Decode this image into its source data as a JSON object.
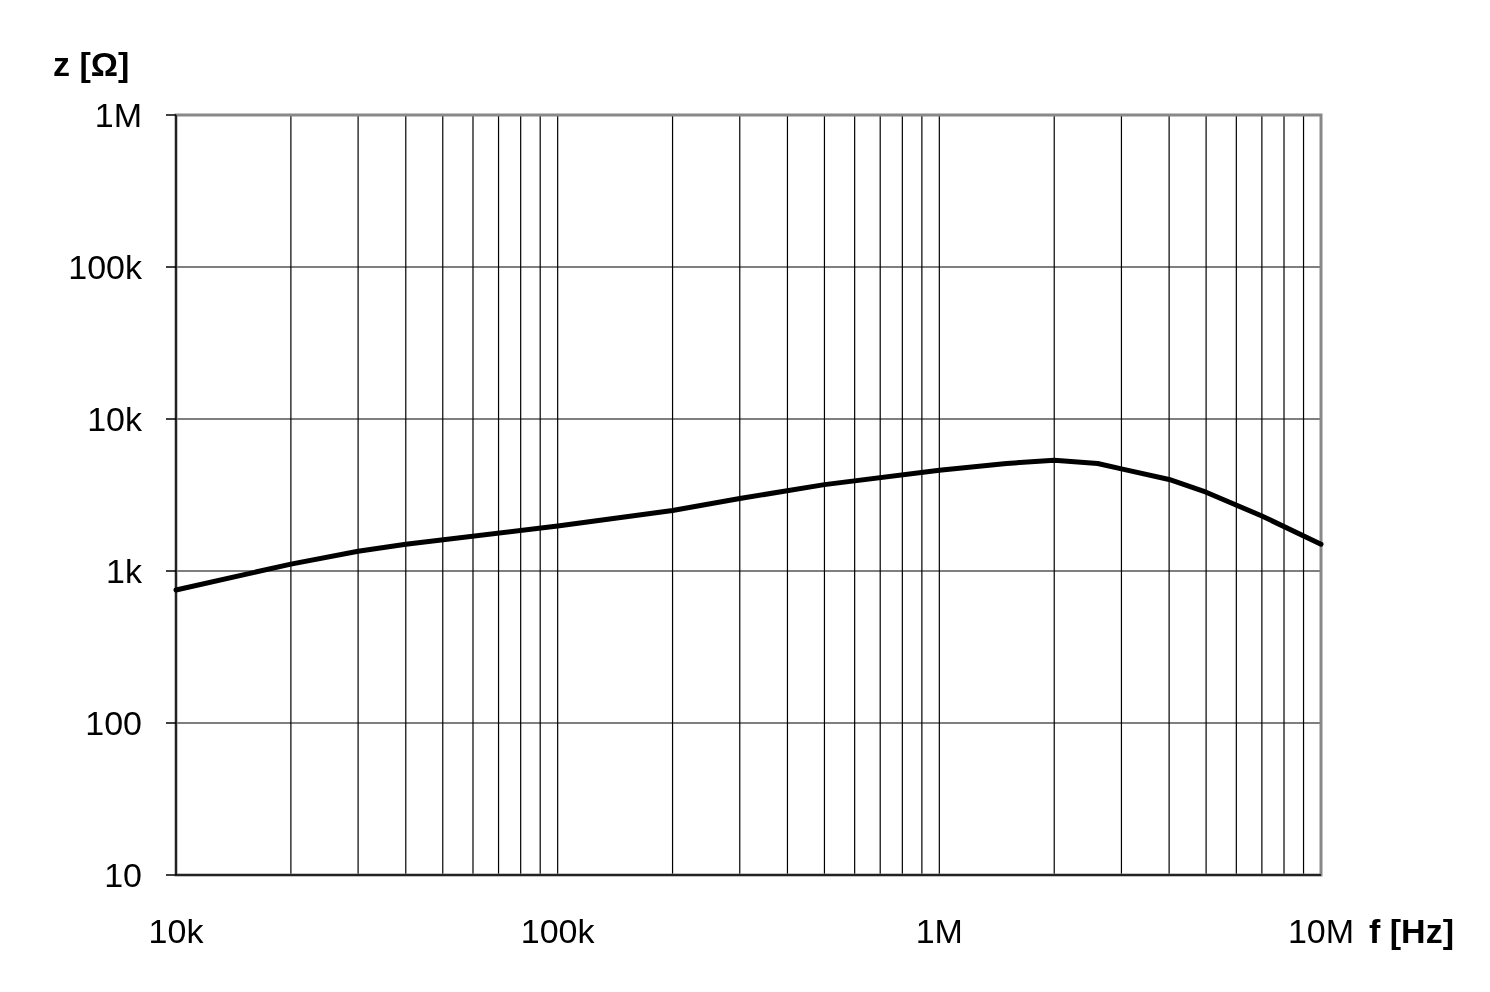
{
  "chart_data": {
    "type": "line",
    "xlabel": "f [Hz]",
    "ylabel": "z [Ω]",
    "log": "xy",
    "grid": true,
    "marker": "none",
    "line_style": "solid",
    "xlim": [
      10000,
      10000000
    ],
    "ylim": [
      10,
      1000000
    ],
    "xticks": [
      {
        "value": 10000,
        "label": "10k"
      },
      {
        "value": 20000,
        "label": null
      },
      {
        "value": 30000,
        "label": null
      },
      {
        "value": 40000,
        "label": null
      },
      {
        "value": 50000,
        "label": null
      },
      {
        "value": 60000,
        "label": null
      },
      {
        "value": 70000,
        "label": null
      },
      {
        "value": 80000,
        "label": null
      },
      {
        "value": 90000,
        "label": null
      },
      {
        "value": 100000,
        "label": "100k"
      },
      {
        "value": 200000,
        "label": null
      },
      {
        "value": 300000,
        "label": null
      },
      {
        "value": 400000,
        "label": null
      },
      {
        "value": 500000,
        "label": null
      },
      {
        "value": 600000,
        "label": null
      },
      {
        "value": 700000,
        "label": null
      },
      {
        "value": 800000,
        "label": null
      },
      {
        "value": 900000,
        "label": null
      },
      {
        "value": 1000000,
        "label": "1M"
      },
      {
        "value": 2000000,
        "label": null
      },
      {
        "value": 3000000,
        "label": null
      },
      {
        "value": 4000000,
        "label": null
      },
      {
        "value": 5000000,
        "label": null
      },
      {
        "value": 6000000,
        "label": null
      },
      {
        "value": 7000000,
        "label": null
      },
      {
        "value": 8000000,
        "label": null
      },
      {
        "value": 9000000,
        "label": null
      },
      {
        "value": 10000000,
        "label": "10M"
      }
    ],
    "yticks": [
      10,
      100,
      {
        "value": 1000,
        "label": "1k"
      },
      {
        "value": 10000,
        "label": "10k"
      },
      {
        "value": 100000,
        "label": "100k"
      },
      {
        "value": 1000000,
        "label": "1M"
      }
    ],
    "x": [
      10000,
      20000,
      30000,
      40000,
      100000,
      200000,
      300000,
      500000,
      1000000,
      1500000,
      2000000,
      2600000,
      3000000,
      4000000,
      5000000,
      7000000,
      10000000
    ],
    "series": [
      {
        "color": "#000000",
        "values": [
          750,
          1110,
          1350,
          1500,
          1980,
          2500,
          3000,
          3700,
          4600,
          5100,
          5350,
          5100,
          4700,
          4000,
          3300,
          2300,
          1500
        ]
      }
    ]
  }
}
